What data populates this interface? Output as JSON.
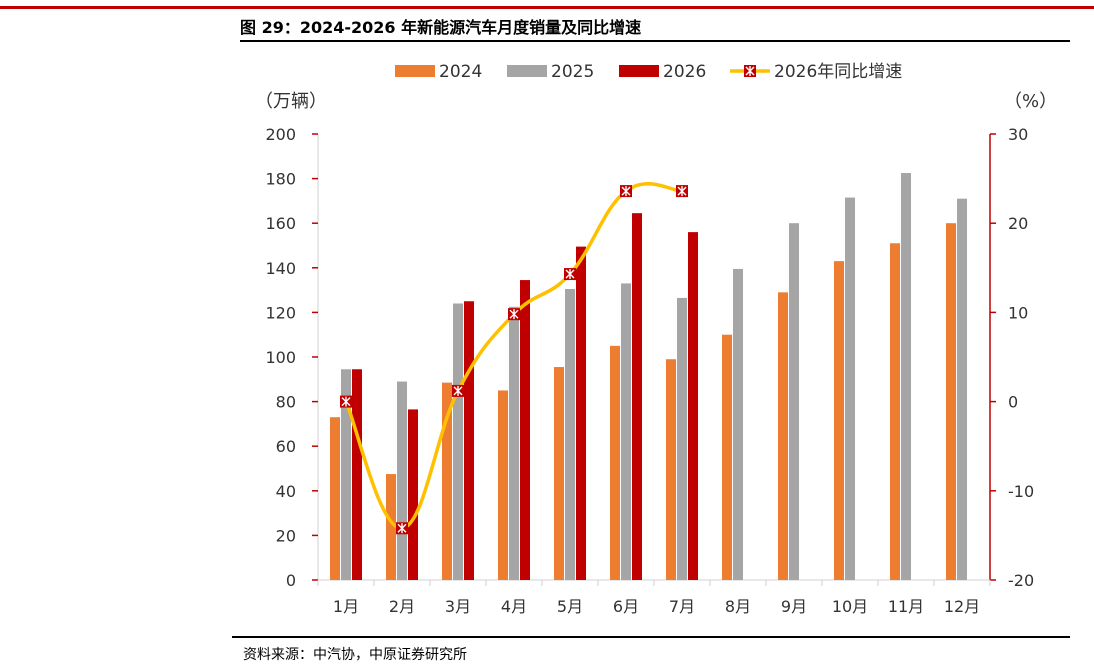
{
  "header": {
    "title": "图 29：2024-2026 年新能源汽车月度销量及同比增速",
    "rule_color": "#c00000"
  },
  "footer": {
    "source": "资料来源：中汽协，中原证券研究所"
  },
  "chart_data": {
    "type": "bar",
    "categories": [
      "1月",
      "2月",
      "3月",
      "4月",
      "5月",
      "6月",
      "7月",
      "8月",
      "9月",
      "10月",
      "11月",
      "12月"
    ],
    "series": [
      {
        "name": "2024",
        "type": "bar",
        "axis": "left",
        "color": "#ed7d31",
        "values": [
          73,
          47.5,
          88.5,
          85,
          95.5,
          105,
          99,
          110,
          129,
          143,
          151,
          160
        ]
      },
      {
        "name": "2025",
        "type": "bar",
        "axis": "left",
        "color": "#a5a5a5",
        "values": [
          94.5,
          89,
          124,
          122.5,
          130.5,
          133,
          126.5,
          139.5,
          160,
          171.5,
          182.5,
          171
        ]
      },
      {
        "name": "2026",
        "type": "bar",
        "axis": "left",
        "color": "#c00000",
        "values": [
          94.5,
          76.5,
          125,
          134.5,
          149.5,
          164.5,
          156,
          null,
          null,
          null,
          null,
          null
        ]
      },
      {
        "name": "2026年同比增速",
        "type": "line",
        "axis": "right",
        "color": "#ffc000",
        "marker_color": "#c00000",
        "values": [
          0,
          -14.2,
          1.2,
          9.8,
          14.3,
          23.6,
          23.6,
          null,
          null,
          null,
          null,
          null
        ]
      }
    ],
    "y_left": {
      "label": "（万辆）",
      "min": 0,
      "max": 200,
      "ticks": [
        0,
        20,
        40,
        60,
        80,
        100,
        120,
        140,
        160,
        180,
        200
      ]
    },
    "y_right": {
      "label": "（%）",
      "min": -20,
      "max": 30,
      "ticks": [
        -20,
        -10,
        0,
        10,
        20,
        30
      ],
      "color": "#c00000"
    },
    "legend_position": "top",
    "grid": false
  }
}
